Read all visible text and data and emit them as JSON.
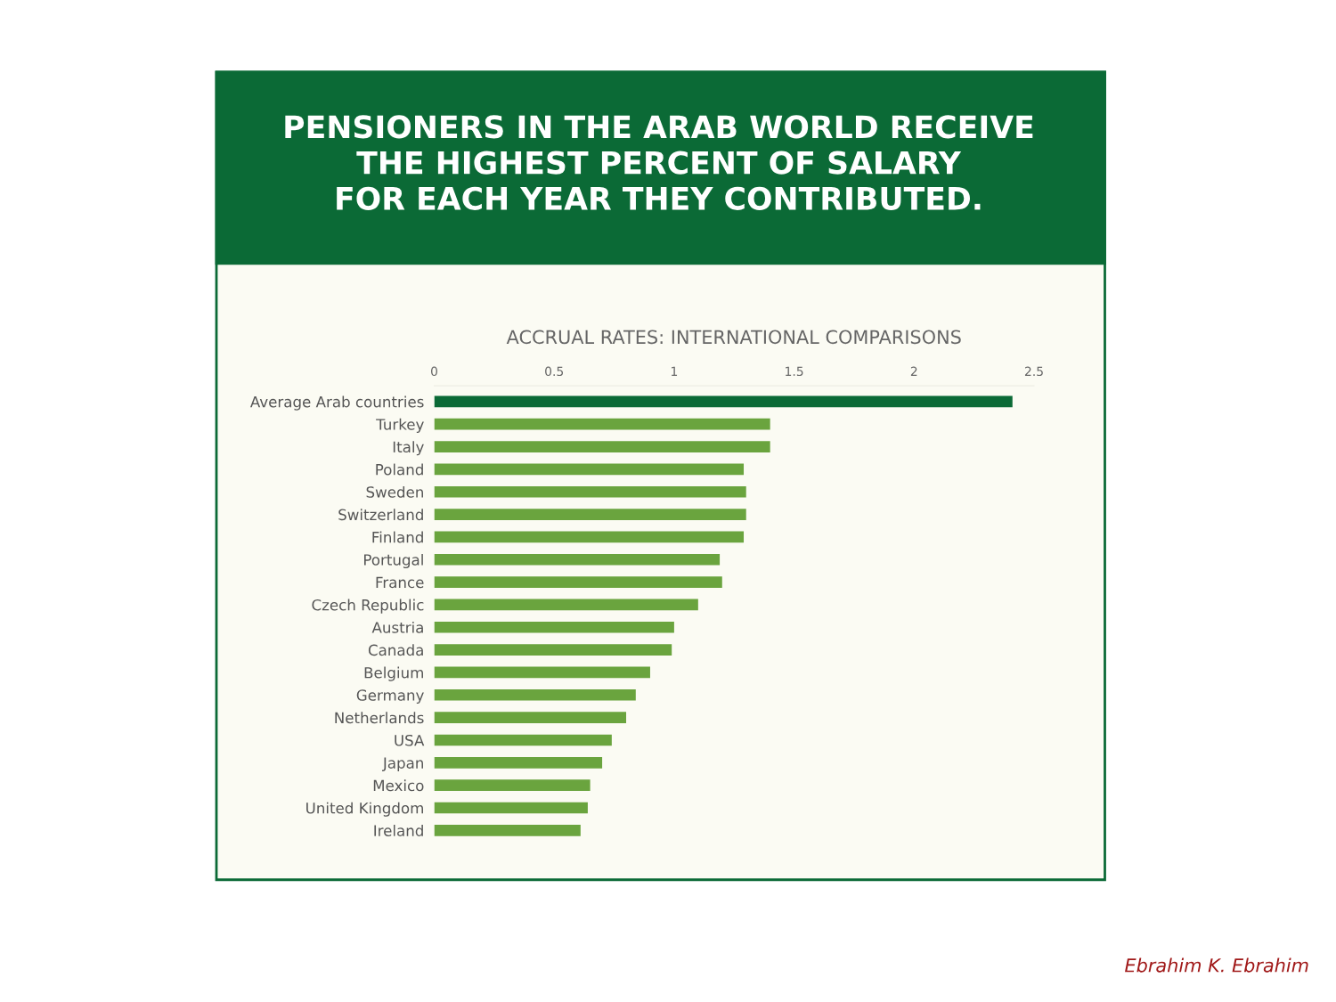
{
  "chart_data": {
    "type": "bar",
    "orientation": "horizontal",
    "title": "PENSIONERS IN THE ARAB WORLD RECEIVE\nTHE HIGHEST PERCENT OF SALARY\nFOR EACH YEAR THEY CONTRIBUTED.",
    "subtitle": "ACCRUAL RATES: INTERNATIONAL COMPARISONS",
    "categories": [
      "Average Arab countries",
      "Turkey",
      "Italy",
      "Poland",
      "Sweden",
      "Switzerland",
      "Finland",
      "Portugal",
      "France",
      "Czech Republic",
      "Austria",
      "Canada",
      "Belgium",
      "Germany",
      "Netherlands",
      "USA",
      "Japan",
      "Mexico",
      "United Kingdom",
      "Ireland"
    ],
    "values": [
      2.41,
      1.4,
      1.4,
      1.29,
      1.3,
      1.3,
      1.29,
      1.19,
      1.2,
      1.1,
      1.0,
      0.99,
      0.9,
      0.84,
      0.8,
      0.74,
      0.7,
      0.65,
      0.64,
      0.61
    ],
    "colors": [
      "#0b6a36",
      "#6aa43e",
      "#6aa43e",
      "#6aa43e",
      "#6aa43e",
      "#6aa43e",
      "#6aa43e",
      "#6aa43e",
      "#6aa43e",
      "#6aa43e",
      "#6aa43e",
      "#6aa43e",
      "#6aa43e",
      "#6aa43e",
      "#6aa43e",
      "#6aa43e",
      "#6aa43e",
      "#6aa43e",
      "#6aa43e",
      "#6aa43e"
    ],
    "xlim": [
      0,
      2.5
    ],
    "xticks": [
      0,
      0.5,
      1,
      1.5,
      2,
      2.5
    ],
    "grid": false,
    "annotations": [
      "Ebrahim K. Ebrahim"
    ]
  }
}
